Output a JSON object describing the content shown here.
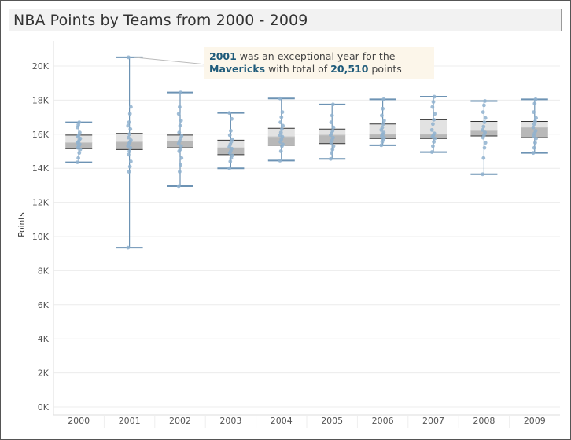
{
  "title": "NBA Points by Teams from 2000 - 2009",
  "annotation": {
    "year": "2001",
    "text1": " was an exceptional year for the",
    "team": "Mavericks",
    "text2": "  with total of ",
    "points": "20,510",
    "text3": " points"
  },
  "colors": {
    "whisker": "#6d93b4",
    "dot": "#8fb1cf",
    "box_upper": "#e2e2e2",
    "box_lower": "#b8b8b8",
    "median_band": "#c8c8c8",
    "grid": "#ececec",
    "axis_text": "#555555"
  },
  "chart_data": {
    "type": "box",
    "title": "NBA Points by Teams from 2000 - 2009",
    "ylabel": "Points",
    "xlabel": "",
    "ylim": [
      0,
      21500
    ],
    "yticks": [
      0,
      2000,
      4000,
      6000,
      8000,
      10000,
      12000,
      14000,
      16000,
      18000,
      20000
    ],
    "ytick_labels": [
      "0K",
      "2K",
      "4K",
      "6K",
      "8K",
      "10K",
      "12K",
      "14K",
      "16K",
      "18K",
      "20K"
    ],
    "categories": [
      "2000",
      "2001",
      "2002",
      "2003",
      "2004",
      "2005",
      "2006",
      "2007",
      "2008",
      "2009"
    ],
    "boxes": [
      {
        "year": "2000",
        "min": 14350,
        "q1": 15150,
        "median": 15500,
        "q3": 15950,
        "max": 16700,
        "points": [
          14350,
          14600,
          14900,
          15100,
          15200,
          15300,
          15400,
          15500,
          15550,
          15650,
          15750,
          15850,
          15950,
          16100,
          16400,
          16550,
          16700
        ]
      },
      {
        "year": "2001",
        "min": 9350,
        "q1": 15100,
        "median": 15550,
        "q3": 16050,
        "max": 20510,
        "points": [
          9350,
          13800,
          14100,
          14400,
          14800,
          15000,
          15200,
          15300,
          15450,
          15550,
          15650,
          15800,
          16000,
          16300,
          16500,
          16700,
          17200,
          17600,
          20510
        ]
      },
      {
        "year": "2002",
        "min": 12950,
        "q1": 15200,
        "median": 15600,
        "q3": 15950,
        "max": 18450,
        "points": [
          12950,
          13800,
          14200,
          14600,
          15000,
          15100,
          15300,
          15450,
          15600,
          15750,
          15900,
          16100,
          16500,
          16800,
          17200,
          17600,
          18450
        ]
      },
      {
        "year": "2003",
        "min": 14000,
        "q1": 14800,
        "median": 15200,
        "q3": 15650,
        "max": 17250,
        "points": [
          14000,
          14400,
          14600,
          14750,
          14900,
          15000,
          15150,
          15250,
          15400,
          15550,
          15700,
          15950,
          16200,
          16900,
          17250
        ]
      },
      {
        "year": "2004",
        "min": 14450,
        "q1": 15350,
        "median": 15850,
        "q3": 16350,
        "max": 18100,
        "points": [
          14450,
          15000,
          15300,
          15400,
          15550,
          15700,
          15850,
          15950,
          16100,
          16300,
          16500,
          16700,
          17000,
          17300,
          18100
        ]
      },
      {
        "year": "2005",
        "min": 14550,
        "q1": 15450,
        "median": 15950,
        "q3": 16300,
        "max": 17750,
        "points": [
          14550,
          14900,
          15100,
          15300,
          15500,
          15650,
          15800,
          15950,
          16050,
          16200,
          16400,
          16700,
          17100,
          17750
        ]
      },
      {
        "year": "2006",
        "min": 15350,
        "q1": 15750,
        "median": 16000,
        "q3": 16600,
        "max": 18050,
        "points": [
          15350,
          15550,
          15700,
          15800,
          15900,
          16000,
          16100,
          16250,
          16400,
          16600,
          16800,
          17100,
          17500,
          18050
        ]
      },
      {
        "year": "2007",
        "min": 14950,
        "q1": 15750,
        "median": 16000,
        "q3": 16850,
        "max": 18200,
        "points": [
          14950,
          15300,
          15550,
          15750,
          15850,
          15950,
          16050,
          16250,
          16600,
          16850,
          17200,
          17600,
          17900,
          18200
        ]
      },
      {
        "year": "2008",
        "min": 13650,
        "q1": 15900,
        "median": 16200,
        "q3": 16750,
        "max": 17950,
        "points": [
          13650,
          14600,
          15200,
          15500,
          15800,
          15950,
          16100,
          16250,
          16450,
          16700,
          16950,
          17300,
          17700,
          17950
        ]
      },
      {
        "year": "2009",
        "min": 14900,
        "q1": 15800,
        "median": 16400,
        "q3": 16750,
        "max": 18050,
        "points": [
          14900,
          15200,
          15500,
          15750,
          15900,
          16050,
          16200,
          16400,
          16600,
          16750,
          16950,
          17300,
          17800,
          18050
        ]
      }
    ],
    "grid": true,
    "legend": "none"
  }
}
